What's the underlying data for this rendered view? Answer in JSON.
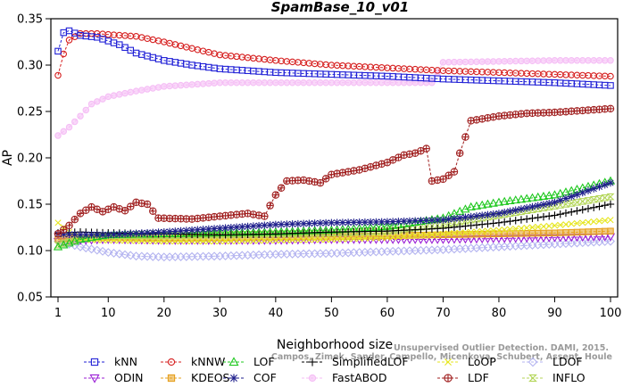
{
  "chart_data": {
    "type": "line",
    "title": "SpamBase_10_v01",
    "xlabel": "Neighborhood size",
    "ylabel": "AP",
    "xlim": [
      1,
      100
    ],
    "ylim": [
      0.05,
      0.35
    ],
    "xticks": [
      1,
      10,
      20,
      30,
      40,
      50,
      60,
      70,
      80,
      90,
      100
    ],
    "yticks": [
      0.05,
      0.1,
      0.15,
      0.2,
      0.25,
      0.3,
      0.35
    ],
    "ytick_labels": [
      "0.05",
      "0.10",
      "0.15",
      "0.20",
      "0.25",
      "0.30",
      "0.35"
    ],
    "grid": false,
    "legend_position": "bottom",
    "watermark": [
      "Campos, Zimek, Sander, Campello, Micenkova, Schubert, Assent, Houle",
      "Unsupervised Outlier Detection. DAMI, 2015."
    ],
    "series": [
      {
        "name": "kNN",
        "color": "#1f1fd6",
        "marker": "square",
        "points": [
          [
            1,
            0.315
          ],
          [
            2,
            0.335
          ],
          [
            3,
            0.337
          ],
          [
            5,
            0.332
          ],
          [
            8,
            0.33
          ],
          [
            10,
            0.326
          ],
          [
            12,
            0.322
          ],
          [
            15,
            0.313
          ],
          [
            20,
            0.305
          ],
          [
            25,
            0.3
          ],
          [
            30,
            0.296
          ],
          [
            40,
            0.292
          ],
          [
            50,
            0.29
          ],
          [
            60,
            0.288
          ],
          [
            70,
            0.285
          ],
          [
            80,
            0.283
          ],
          [
            90,
            0.281
          ],
          [
            100,
            0.278
          ]
        ]
      },
      {
        "name": "kNNW",
        "color": "#d61f1f",
        "marker": "circle",
        "points": [
          [
            1,
            0.289
          ],
          [
            2,
            0.312
          ],
          [
            3,
            0.327
          ],
          [
            5,
            0.334
          ],
          [
            8,
            0.334
          ],
          [
            10,
            0.333
          ],
          [
            15,
            0.331
          ],
          [
            20,
            0.325
          ],
          [
            25,
            0.318
          ],
          [
            30,
            0.311
          ],
          [
            40,
            0.305
          ],
          [
            50,
            0.3
          ],
          [
            60,
            0.297
          ],
          [
            70,
            0.294
          ],
          [
            80,
            0.292
          ],
          [
            90,
            0.29
          ],
          [
            100,
            0.288
          ]
        ]
      },
      {
        "name": "LOF",
        "color": "#1fc81f",
        "marker": "triangle",
        "points": [
          [
            1,
            0.104
          ],
          [
            3,
            0.108
          ],
          [
            5,
            0.112
          ],
          [
            10,
            0.117
          ],
          [
            20,
            0.118
          ],
          [
            30,
            0.119
          ],
          [
            40,
            0.12
          ],
          [
            50,
            0.122
          ],
          [
            60,
            0.126
          ],
          [
            70,
            0.135
          ],
          [
            75,
            0.147
          ],
          [
            80,
            0.152
          ],
          [
            90,
            0.16
          ],
          [
            100,
            0.175
          ]
        ]
      },
      {
        "name": "SimplifiedLOF",
        "color": "#000000",
        "marker": "plus",
        "points": [
          [
            1,
            0.119
          ],
          [
            5,
            0.12
          ],
          [
            10,
            0.119
          ],
          [
            20,
            0.118
          ],
          [
            30,
            0.117
          ],
          [
            40,
            0.118
          ],
          [
            50,
            0.12
          ],
          [
            60,
            0.121
          ],
          [
            70,
            0.124
          ],
          [
            80,
            0.13
          ],
          [
            90,
            0.138
          ],
          [
            100,
            0.15
          ]
        ]
      },
      {
        "name": "LoOP",
        "color": "#e6e61f",
        "marker": "x",
        "points": [
          [
            1,
            0.13
          ],
          [
            3,
            0.12
          ],
          [
            5,
            0.112
          ],
          [
            10,
            0.111
          ],
          [
            20,
            0.11
          ],
          [
            30,
            0.11
          ],
          [
            40,
            0.111
          ],
          [
            50,
            0.112
          ],
          [
            60,
            0.114
          ],
          [
            70,
            0.118
          ],
          [
            80,
            0.122
          ],
          [
            90,
            0.127
          ],
          [
            100,
            0.133
          ]
        ]
      },
      {
        "name": "LDOF",
        "color": "#b4b4f0",
        "marker": "diamond",
        "points": [
          [
            1,
            0.11
          ],
          [
            5,
            0.104
          ],
          [
            10,
            0.098
          ],
          [
            15,
            0.094
          ],
          [
            20,
            0.093
          ],
          [
            30,
            0.094
          ],
          [
            40,
            0.096
          ],
          [
            50,
            0.097
          ],
          [
            60,
            0.099
          ],
          [
            70,
            0.101
          ],
          [
            80,
            0.104
          ],
          [
            90,
            0.107
          ],
          [
            100,
            0.11
          ]
        ]
      },
      {
        "name": "ODIN",
        "color": "#9b1fd6",
        "marker": "triangle-down",
        "points": [
          [
            1,
            0.11
          ],
          [
            5,
            0.111
          ],
          [
            10,
            0.112
          ],
          [
            20,
            0.111
          ],
          [
            30,
            0.111
          ],
          [
            40,
            0.111
          ],
          [
            50,
            0.112
          ],
          [
            60,
            0.112
          ],
          [
            70,
            0.112
          ],
          [
            80,
            0.113
          ],
          [
            90,
            0.114
          ],
          [
            100,
            0.115
          ]
        ]
      },
      {
        "name": "KDEOS",
        "color": "#e6a01f",
        "marker": "square-filled",
        "points": [
          [
            1,
            0.112
          ],
          [
            5,
            0.114
          ],
          [
            10,
            0.114
          ],
          [
            20,
            0.113
          ],
          [
            30,
            0.114
          ],
          [
            40,
            0.115
          ],
          [
            50,
            0.115
          ],
          [
            60,
            0.116
          ],
          [
            70,
            0.117
          ],
          [
            80,
            0.118
          ],
          [
            90,
            0.119
          ],
          [
            100,
            0.121
          ]
        ]
      },
      {
        "name": "COF",
        "color": "#1f1f8c",
        "marker": "star",
        "points": [
          [
            1,
            0.118
          ],
          [
            5,
            0.117
          ],
          [
            10,
            0.117
          ],
          [
            20,
            0.12
          ],
          [
            30,
            0.124
          ],
          [
            40,
            0.128
          ],
          [
            50,
            0.13
          ],
          [
            60,
            0.131
          ],
          [
            70,
            0.133
          ],
          [
            80,
            0.14
          ],
          [
            90,
            0.152
          ],
          [
            100,
            0.173
          ]
        ]
      },
      {
        "name": "FastABOD",
        "color": "#f5bef5",
        "marker": "circle-filled",
        "points": [
          [
            1,
            0.224
          ],
          [
            3,
            0.233
          ],
          [
            5,
            0.245
          ],
          [
            7,
            0.258
          ],
          [
            10,
            0.266
          ],
          [
            15,
            0.272
          ],
          [
            20,
            0.277
          ],
          [
            30,
            0.281
          ],
          [
            40,
            0.281
          ],
          [
            50,
            0.281
          ],
          [
            60,
            0.281
          ],
          [
            68,
            0.281
          ],
          [
            70,
            0.303
          ],
          [
            80,
            0.304
          ],
          [
            90,
            0.305
          ],
          [
            100,
            0.305
          ]
        ]
      },
      {
        "name": "LDF",
        "color": "#a01f1f",
        "marker": "circle-cross",
        "points": [
          [
            1,
            0.118
          ],
          [
            3,
            0.127
          ],
          [
            5,
            0.14
          ],
          [
            7,
            0.147
          ],
          [
            9,
            0.142
          ],
          [
            11,
            0.147
          ],
          [
            13,
            0.143
          ],
          [
            15,
            0.152
          ],
          [
            17,
            0.15
          ],
          [
            19,
            0.135
          ],
          [
            25,
            0.134
          ],
          [
            30,
            0.137
          ],
          [
            35,
            0.14
          ],
          [
            38,
            0.137
          ],
          [
            40,
            0.16
          ],
          [
            42,
            0.175
          ],
          [
            45,
            0.176
          ],
          [
            48,
            0.173
          ],
          [
            50,
            0.182
          ],
          [
            55,
            0.187
          ],
          [
            60,
            0.195
          ],
          [
            63,
            0.203
          ],
          [
            65,
            0.205
          ],
          [
            67,
            0.21
          ],
          [
            68,
            0.175
          ],
          [
            70,
            0.177
          ],
          [
            72,
            0.185
          ],
          [
            73,
            0.205
          ],
          [
            75,
            0.24
          ],
          [
            80,
            0.245
          ],
          [
            85,
            0.248
          ],
          [
            90,
            0.249
          ],
          [
            95,
            0.251
          ],
          [
            100,
            0.253
          ]
        ]
      },
      {
        "name": "INFLO",
        "color": "#b4d65a",
        "marker": "hourglass",
        "points": [
          [
            1,
            0.106
          ],
          [
            5,
            0.113
          ],
          [
            10,
            0.116
          ],
          [
            20,
            0.116
          ],
          [
            30,
            0.117
          ],
          [
            40,
            0.118
          ],
          [
            50,
            0.119
          ],
          [
            60,
            0.121
          ],
          [
            70,
            0.128
          ],
          [
            80,
            0.138
          ],
          [
            90,
            0.148
          ],
          [
            100,
            0.158
          ]
        ]
      }
    ],
    "legend_layout": [
      [
        "kNN",
        "kNNW",
        "LOF",
        "SimplifiedLOF",
        "LoOP",
        "LDOF"
      ],
      [
        "ODIN",
        "KDEOS",
        "COF",
        "FastABOD",
        "LDF",
        "INFLO"
      ]
    ]
  }
}
